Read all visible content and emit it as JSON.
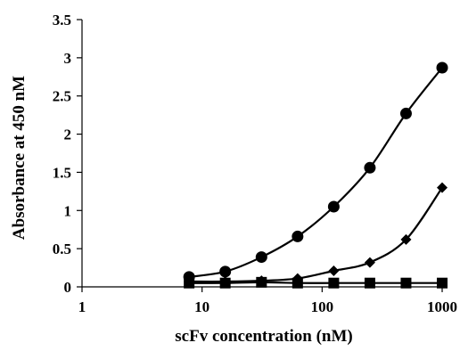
{
  "chart_data": {
    "type": "scatter",
    "title": "",
    "xlabel": "scFv concentration (nM)",
    "ylabel": "Absorbance at 450 nM",
    "xscale": "log",
    "xlim": [
      1,
      1000
    ],
    "ylim": [
      0,
      3.5
    ],
    "x_ticks": [
      "1",
      "10",
      "100",
      "1000"
    ],
    "y_ticks": [
      "0",
      "0.5",
      "1",
      "1.5",
      "2",
      "2.5",
      "3",
      "3.5"
    ],
    "grid": false,
    "legend": "none",
    "series": [
      {
        "marker": "circle",
        "smoothed_line": true,
        "points": [
          [
            7.8,
            0.13
          ],
          [
            15.6,
            0.2
          ],
          [
            31.25,
            0.39
          ],
          [
            62.5,
            0.66
          ],
          [
            125,
            1.05
          ],
          [
            250,
            1.56
          ],
          [
            500,
            2.27
          ],
          [
            1000,
            2.87
          ]
        ]
      },
      {
        "marker": "diamond",
        "smoothed_line": true,
        "points": [
          [
            7.8,
            0.07
          ],
          [
            15.6,
            0.07
          ],
          [
            31.25,
            0.08
          ],
          [
            62.5,
            0.11
          ],
          [
            125,
            0.21
          ],
          [
            250,
            0.32
          ],
          [
            500,
            0.62
          ],
          [
            1000,
            1.3
          ]
        ]
      },
      {
        "marker": "square",
        "smoothed_line": true,
        "points": [
          [
            7.8,
            0.05
          ],
          [
            15.6,
            0.05
          ],
          [
            31.25,
            0.06
          ],
          [
            62.5,
            0.05
          ],
          [
            125,
            0.05
          ],
          [
            250,
            0.05
          ],
          [
            500,
            0.05
          ],
          [
            1000,
            0.05
          ]
        ]
      }
    ],
    "colors": {
      "line": "#000000",
      "marker": "#000000",
      "axis": "#000000",
      "background": "#ffffff"
    }
  }
}
